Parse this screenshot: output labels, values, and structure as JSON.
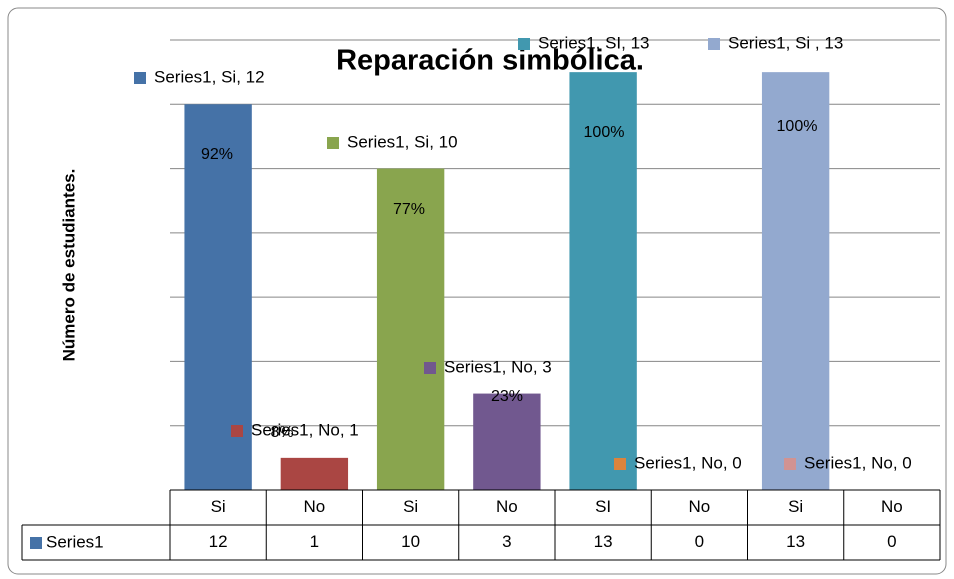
{
  "chart_data": {
    "type": "bar",
    "title": "Reparación simbólica.",
    "y_label": "Número de estudiantes.",
    "categories": [
      "Si",
      "No",
      "Si",
      "No",
      "SI",
      "No",
      "Si",
      "No"
    ],
    "series": [
      {
        "name": "Series1",
        "color": "#4572a7",
        "values": [
          12,
          1,
          10,
          3,
          13,
          0,
          13,
          0
        ],
        "value_labels": [
          "Series1, Si, 12",
          "Series1, No, 1",
          "Series1, Si, 10",
          "Series1, No, 3",
          "Series1, SI, 13",
          "Series1, No, 0",
          "Series1, Si , 13",
          "Series1, No, 0"
        ],
        "percent_labels": [
          "92%",
          "8%",
          "77%",
          "23%",
          "100%",
          null,
          "100%",
          null
        ],
        "point_colors": [
          "#4572a7",
          "#aa4643",
          "#89a54e",
          "#71588f",
          "#4198af",
          "#db843d",
          "#93a9cf",
          "#d19392"
        ]
      }
    ],
    "ylim": [
      0,
      14
    ],
    "yticks": [
      0,
      2,
      4,
      6,
      8,
      10,
      12,
      14
    ],
    "grid": true,
    "data_table": true
  }
}
